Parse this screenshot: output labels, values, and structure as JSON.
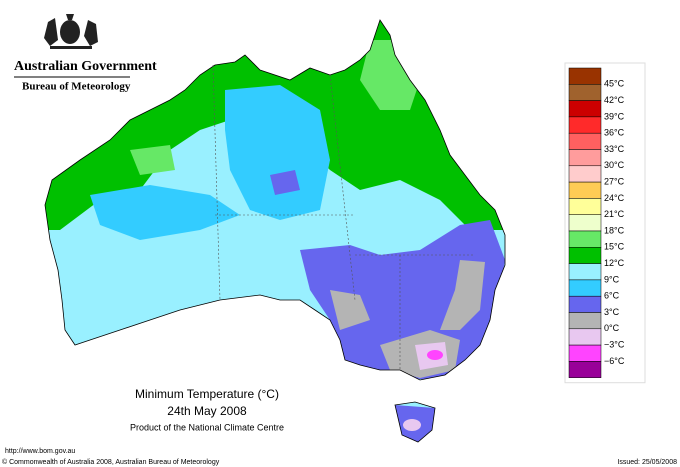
{
  "header": {
    "government": "Australian Government",
    "bureau": "Bureau of Meteorology"
  },
  "legend": {
    "labels": [
      "45°C",
      "42°C",
      "39°C",
      "36°C",
      "33°C",
      "30°C",
      "27°C",
      "24°C",
      "21°C",
      "18°C",
      "15°C",
      "12°C",
      "9°C",
      "6°C",
      "3°C",
      "0°C",
      "−3°C",
      "−6°C"
    ],
    "colors": [
      "#993300",
      "#a0622d",
      "#cc0000",
      "#ff2a2a",
      "#ff6060",
      "#ff9c9c",
      "#ffcccc",
      "#ffcc55",
      "#ffff99",
      "#eeffcc",
      "#66e866",
      "#00c000",
      "#99f0ff",
      "#33ccff",
      "#6666ee",
      "#b4b4b4",
      "#e8c8f0",
      "#ff44ff",
      "#990099"
    ]
  },
  "title": {
    "heading": "Minimum Temperature (°C)",
    "date": "24th May 2008",
    "product": "Product of the National Climate Centre"
  },
  "footer": {
    "url": "http://www.bom.gov.au",
    "copyright": "© Commonwealth of Australia 2008, Australian Bureau of Meteorology",
    "issued": "Issued: 25/05/2008"
  }
}
